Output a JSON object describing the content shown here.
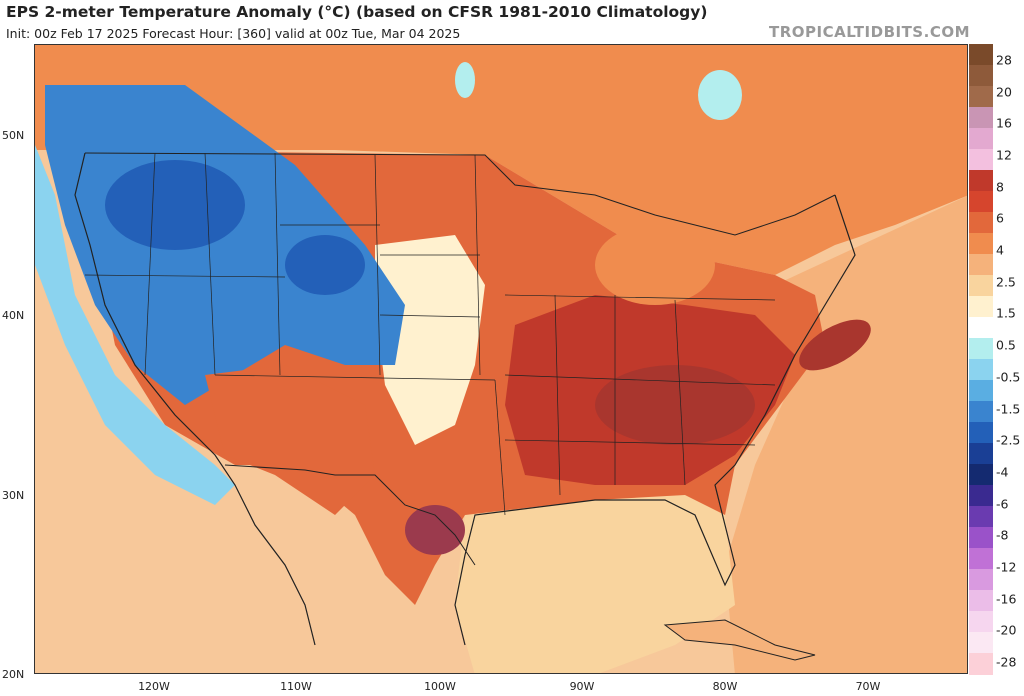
{
  "header": {
    "title": "EPS 2-meter Temperature Anomaly (°C) (based on CFSR 1981-2010 Climatology)",
    "subtitle": "Init: 00z Feb 17 2025   Forecast Hour: [360]   valid at 00z Tue, Mar 04 2025",
    "site": "TROPICALTIDBITS.COM"
  },
  "axes": {
    "lat_labels": [
      "50N",
      "40N",
      "30N",
      "20N"
    ],
    "lon_labels": [
      "120W",
      "110W",
      "100W",
      "90W",
      "80W",
      "70W"
    ]
  },
  "colorbar": {
    "labels": [
      "28",
      "20",
      "16",
      "12",
      "8",
      "6",
      "4",
      "2.5",
      "1.5",
      "0.5",
      "-0.5",
      "-1.5",
      "-2.5",
      "-4",
      "-6",
      "-8",
      "-12",
      "-16",
      "-20",
      "-28"
    ],
    "colors": [
      "#7a4a2a",
      "#8e5a3a",
      "#a06a4a",
      "#c995b4",
      "#e3a9d0",
      "#f3c0df",
      "#c0392b",
      "#d6452d",
      "#e2683b",
      "#f08c4e",
      "#f5b27b",
      "#f9d49e",
      "#fff1cf",
      "#ffffff",
      "#b3eeee",
      "#8bd3ef",
      "#5aaee2",
      "#3a84cf",
      "#2360b8",
      "#1a3f95",
      "#142a70",
      "#3a2a90",
      "#6a3bb0",
      "#9a52c9",
      "#c071d6",
      "#d99ae0",
      "#ebbde8",
      "#f6d6ef",
      "#fbe8f3",
      "#fcd0d8"
    ]
  },
  "map": {
    "region": "CONUS",
    "colors": {
      "ocean_pacific": "#f7c89a",
      "ocean_atlantic": "#f5b27b",
      "gulf": "#f9d49e",
      "warm_east": "#e2683b",
      "hot_core": "#c0392b",
      "very_hot": "#9b3a4d",
      "cold_west": "#3a84cf",
      "cool_west": "#8bd3ef",
      "neutral": "#fff1cf",
      "canada": "#f08c4e",
      "lake": "#b3eeee"
    }
  }
}
